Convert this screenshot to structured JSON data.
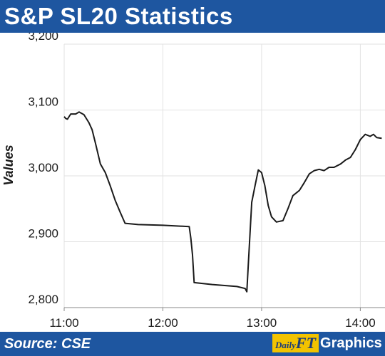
{
  "header": {
    "title": "S&P SL20 Statistics"
  },
  "footer": {
    "source": "Source: CSE",
    "brand_daily": "Daily",
    "brand_ft": "FT",
    "brand_graphics": "Graphics"
  },
  "colors": {
    "bar": "#1e56a0",
    "line": "#1a1a1a",
    "grid": "#e2e2e2",
    "brand_yellow": "#f2c300"
  },
  "chart_data": {
    "type": "line",
    "title": "S&P SL20 Statistics",
    "xlabel": "",
    "ylabel": "Values",
    "xlim": [
      "11:00",
      "14:15"
    ],
    "ylim": [
      2800,
      3200
    ],
    "grid": true,
    "x_ticks": [
      "11:00",
      "12:00",
      "13:00",
      "14:00"
    ],
    "y_ticks": [
      {
        "value": 2800,
        "label": "2,800"
      },
      {
        "value": 2900,
        "label": "2,900"
      },
      {
        "value": 3000,
        "label": "3,000"
      },
      {
        "value": 3100,
        "label": "3,100"
      },
      {
        "value": 3200,
        "label": "3,200"
      }
    ],
    "series": [
      {
        "points": [
          {
            "x": "11:00",
            "y": 3090
          },
          {
            "x": "11:01",
            "y": 3087
          },
          {
            "x": "11:02",
            "y": 3086
          },
          {
            "x": "11:04",
            "y": 3094
          },
          {
            "x": "11:07",
            "y": 3094
          },
          {
            "x": "11:09",
            "y": 3097
          },
          {
            "x": "11:12",
            "y": 3093
          },
          {
            "x": "11:15",
            "y": 3081
          },
          {
            "x": "11:17",
            "y": 3070
          },
          {
            "x": "11:19",
            "y": 3050
          },
          {
            "x": "11:22",
            "y": 3018
          },
          {
            "x": "11:25",
            "y": 3005
          },
          {
            "x": "11:28",
            "y": 2985
          },
          {
            "x": "11:31",
            "y": 2963
          },
          {
            "x": "11:34",
            "y": 2945
          },
          {
            "x": "11:37",
            "y": 2928
          },
          {
            "x": "11:45",
            "y": 2926
          },
          {
            "x": "12:00",
            "y": 2925
          },
          {
            "x": "12:16",
            "y": 2923
          },
          {
            "x": "12:17",
            "y": 2905
          },
          {
            "x": "12:18",
            "y": 2880
          },
          {
            "x": "12:19",
            "y": 2838
          },
          {
            "x": "12:30",
            "y": 2835
          },
          {
            "x": "12:45",
            "y": 2832
          },
          {
            "x": "12:50",
            "y": 2829
          },
          {
            "x": "12:51",
            "y": 2824
          },
          {
            "x": "12:52",
            "y": 2870
          },
          {
            "x": "12:54",
            "y": 2960
          },
          {
            "x": "12:56",
            "y": 2985
          },
          {
            "x": "12:58",
            "y": 3009
          },
          {
            "x": "13:00",
            "y": 3005
          },
          {
            "x": "13:02",
            "y": 2985
          },
          {
            "x": "13:04",
            "y": 2955
          },
          {
            "x": "13:06",
            "y": 2938
          },
          {
            "x": "13:09",
            "y": 2930
          },
          {
            "x": "13:13",
            "y": 2932
          },
          {
            "x": "13:16",
            "y": 2950
          },
          {
            "x": "13:19",
            "y": 2970
          },
          {
            "x": "13:23",
            "y": 2978
          },
          {
            "x": "13:26",
            "y": 2990
          },
          {
            "x": "13:29",
            "y": 3003
          },
          {
            "x": "13:32",
            "y": 3008
          },
          {
            "x": "13:35",
            "y": 3010
          },
          {
            "x": "13:38",
            "y": 3008
          },
          {
            "x": "13:41",
            "y": 3013
          },
          {
            "x": "13:44",
            "y": 3013
          },
          {
            "x": "13:48",
            "y": 3018
          },
          {
            "x": "13:51",
            "y": 3024
          },
          {
            "x": "13:54",
            "y": 3028
          },
          {
            "x": "13:57",
            "y": 3040
          },
          {
            "x": "14:00",
            "y": 3055
          },
          {
            "x": "14:03",
            "y": 3063
          },
          {
            "x": "14:06",
            "y": 3060
          },
          {
            "x": "14:08",
            "y": 3063
          },
          {
            "x": "14:10",
            "y": 3058
          },
          {
            "x": "14:13",
            "y": 3057
          }
        ]
      }
    ]
  }
}
